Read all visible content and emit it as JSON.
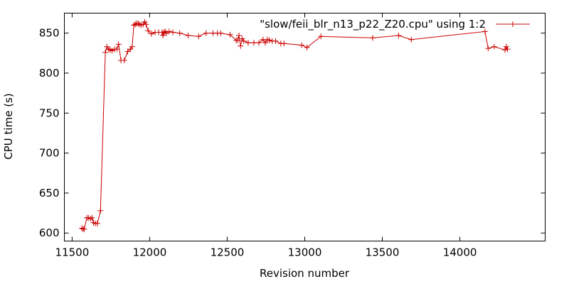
{
  "chart_data": {
    "type": "line",
    "title": "",
    "xlabel": "Revision number",
    "ylabel": "CPU time (s)",
    "xlim": [
      11450,
      14550
    ],
    "ylim": [
      590,
      875
    ],
    "x_ticks": [
      11500,
      12000,
      12500,
      13000,
      13500,
      14000
    ],
    "y_ticks": [
      600,
      650,
      700,
      750,
      800,
      850
    ],
    "grid": false,
    "legend": {
      "position": "top-right"
    },
    "series": [
      {
        "name": "\"slow/feii_blr_n13_p22_Z20.cpu\" using 1:2",
        "color": "#cc0000",
        "marker": "plus",
        "x": [
          11563,
          11571,
          11578,
          11595,
          11605,
          11618,
          11628,
          11638,
          11650,
          11663,
          11683,
          11714,
          11724,
          11736,
          11746,
          11758,
          11775,
          11789,
          11800,
          11815,
          11836,
          11858,
          11876,
          11887,
          11898,
          11907,
          11916,
          11925,
          11934,
          11945,
          11958,
          11968,
          11977,
          11990,
          12012,
          12035,
          12058,
          12079,
          12085,
          12092,
          12100,
          12108,
          12126,
          12150,
          12194,
          12248,
          12316,
          12364,
          12408,
          12437,
          12458,
          12518,
          12558,
          12567,
          12576,
          12586,
          12596,
          12606,
          12635,
          12672,
          12704,
          12731,
          12745,
          12759,
          12772,
          12790,
          12812,
          12846,
          12866,
          12980,
          13014,
          13104,
          13438,
          13605,
          13687,
          14162,
          14182,
          14221,
          14291,
          14299,
          14307
        ],
        "y": [
          606,
          605,
          605,
          619,
          619,
          618,
          619,
          613,
          612,
          612,
          628,
          826,
          833,
          830,
          829,
          828,
          830,
          830,
          836,
          816,
          816,
          827,
          830,
          833,
          860,
          861,
          862,
          862,
          861,
          860,
          861,
          864,
          861,
          853,
          849,
          851,
          851,
          851,
          847,
          851,
          852,
          850,
          852,
          851,
          850,
          847,
          846,
          850,
          850,
          850,
          850,
          848,
          841,
          841,
          847,
          834,
          843,
          840,
          838,
          838,
          838,
          842,
          838,
          842,
          841,
          840,
          840,
          837,
          837,
          835,
          832,
          846,
          844,
          847,
          842,
          852,
          831,
          833,
          829,
          833,
          830
        ]
      }
    ]
  }
}
